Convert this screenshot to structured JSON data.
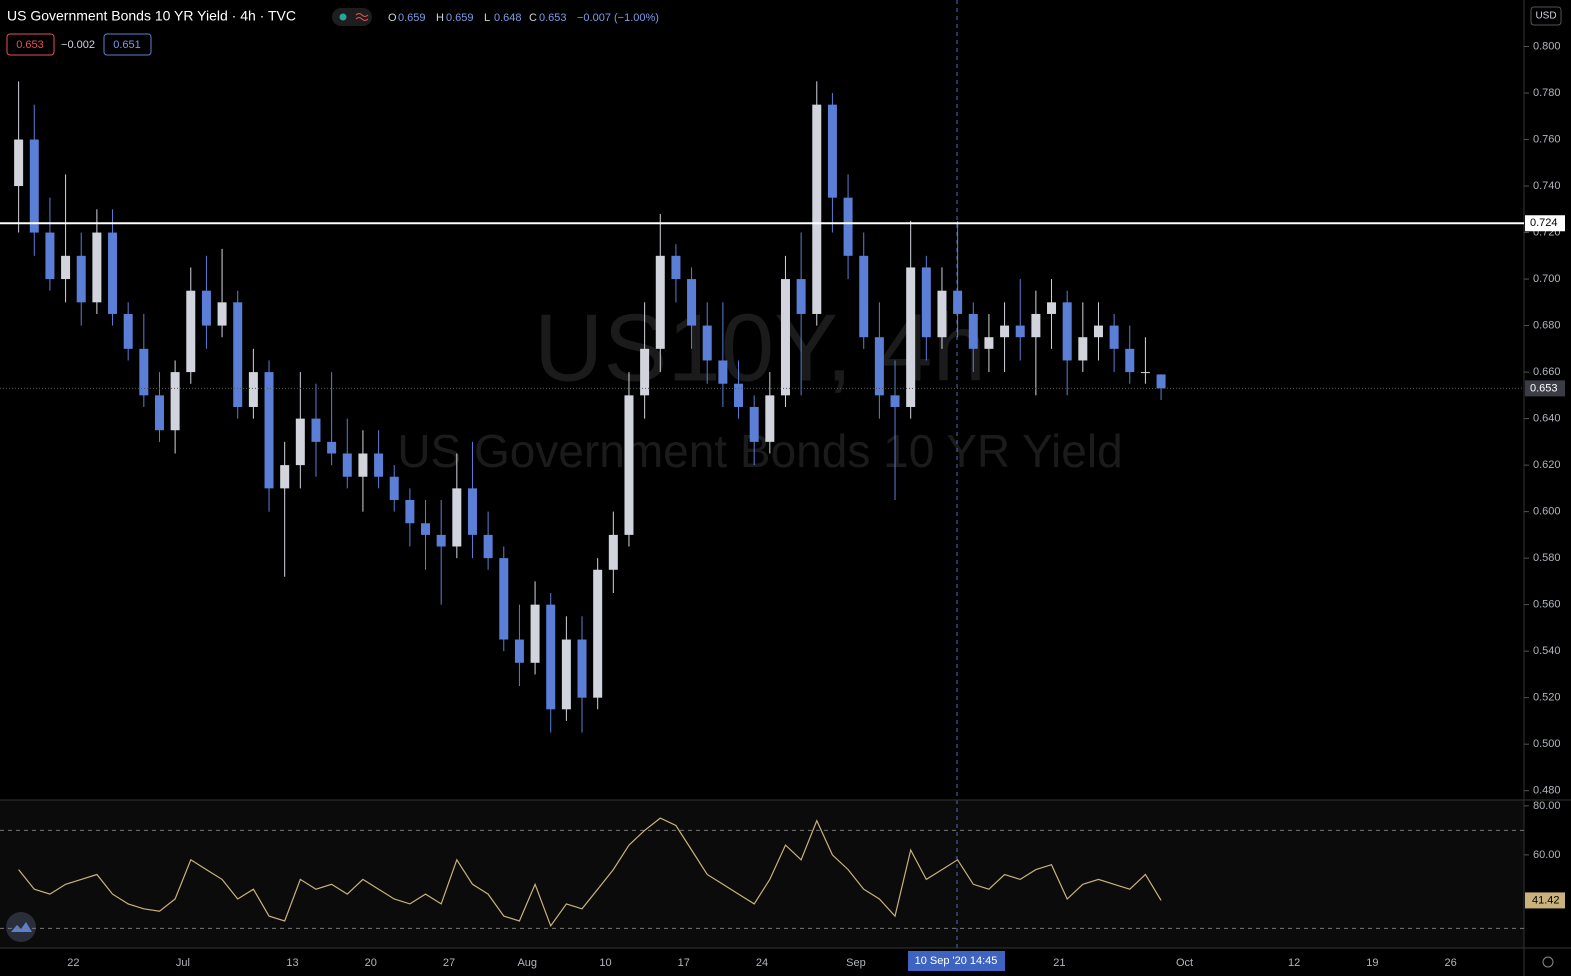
{
  "header": {
    "title": "US Government Bonds 10 YR Yield · 4h · TVC",
    "ohlc": [
      {
        "label": "O",
        "value": 0.659
      },
      {
        "label": "H",
        "value": 0.659
      },
      {
        "label": "L",
        "value": 0.648
      },
      {
        "label": "C",
        "value": 0.653
      }
    ],
    "change": "−0.007 (−1.00%)",
    "bid": 0.653,
    "spread": "−0.002",
    "ask": 0.651
  },
  "watermark": {
    "symbol": "US10Y, 4h",
    "name": "US Government Bonds 10 YR Yield"
  },
  "currency": "USD",
  "crosshair_label": "10 Sep '20  14:45",
  "chart_data": [
    {
      "type": "candlestick",
      "up_color": "#d1d4dc",
      "down_color": "#5b7fd6",
      "categories": [
        null,
        null,
        null,
        null,
        "22",
        null,
        null,
        null,
        null,
        null,
        null,
        "Jul",
        null,
        null,
        null,
        null,
        null,
        null,
        "13",
        null,
        null,
        null,
        null,
        "20",
        null,
        null,
        null,
        null,
        "27",
        null,
        null,
        null,
        null,
        "Aug",
        null,
        null,
        null,
        null,
        "10",
        null,
        null,
        null,
        null,
        "17",
        null,
        null,
        null,
        null,
        "24",
        null,
        null,
        null,
        null,
        null,
        "Sep",
        null,
        null,
        null,
        null,
        null,
        null,
        null,
        null,
        null,
        null,
        null,
        null,
        "21",
        null,
        null,
        null,
        null,
        null,
        null,
        null,
        "Oct",
        null,
        null,
        null,
        null,
        null,
        null,
        "12",
        null,
        null,
        null,
        null,
        "19",
        null,
        null,
        null,
        null,
        "26",
        null,
        null,
        null,
        null
      ],
      "open": [
        0.74,
        0.76,
        0.72,
        0.7,
        0.71,
        0.69,
        0.72,
        0.685,
        0.67,
        0.65,
        0.635,
        0.66,
        0.695,
        0.68,
        0.69,
        0.645,
        0.66,
        0.61,
        0.62,
        0.64,
        0.63,
        0.625,
        0.615,
        0.625,
        0.615,
        0.605,
        0.595,
        0.59,
        0.585,
        0.61,
        0.59,
        0.58,
        0.545,
        0.535,
        0.56,
        0.515,
        0.545,
        0.52,
        0.575,
        0.59,
        0.65,
        0.67,
        0.71,
        0.7,
        0.68,
        0.665,
        0.655,
        0.645,
        0.63,
        0.65,
        0.7,
        0.685,
        0.775,
        0.735,
        0.71,
        0.675,
        0.65,
        0.645,
        0.705,
        0.675,
        0.695,
        0.685,
        0.67,
        0.675,
        0.68,
        0.675,
        0.685,
        0.69,
        0.665,
        0.675,
        0.68,
        0.67,
        0.66,
        0.659,
        null,
        null,
        null,
        null,
        null,
        null,
        null,
        null,
        null,
        null,
        null,
        null,
        null,
        null,
        null,
        null,
        null,
        null,
        null,
        null,
        null,
        null,
        null
      ],
      "high": [
        0.785,
        0.775,
        0.735,
        0.745,
        0.72,
        0.73,
        0.73,
        0.69,
        0.685,
        0.66,
        0.665,
        0.705,
        0.71,
        0.713,
        0.695,
        0.67,
        0.665,
        0.63,
        0.66,
        0.655,
        0.66,
        0.64,
        0.635,
        0.635,
        0.62,
        0.61,
        0.605,
        0.605,
        0.625,
        0.63,
        0.6,
        0.585,
        0.56,
        0.57,
        0.565,
        0.555,
        0.555,
        0.58,
        0.6,
        0.66,
        0.69,
        0.728,
        0.715,
        0.705,
        0.69,
        0.69,
        0.665,
        0.65,
        0.66,
        0.71,
        0.72,
        0.785,
        0.78,
        0.745,
        0.72,
        0.69,
        0.665,
        0.725,
        0.71,
        0.705,
        0.725,
        0.69,
        0.685,
        0.69,
        0.7,
        0.695,
        0.7,
        0.695,
        0.69,
        0.69,
        0.685,
        0.68,
        0.675,
        0.659,
        null,
        null,
        null,
        null,
        null,
        null,
        null,
        null,
        null,
        null,
        null,
        null,
        null,
        null,
        null,
        null,
        null,
        null,
        null,
        null,
        null,
        null,
        null
      ],
      "low": [
        0.72,
        0.71,
        0.695,
        0.69,
        0.68,
        0.685,
        0.68,
        0.665,
        0.645,
        0.63,
        0.625,
        0.655,
        0.67,
        0.675,
        0.64,
        0.64,
        0.6,
        0.572,
        0.61,
        0.615,
        0.62,
        0.61,
        0.6,
        0.61,
        0.6,
        0.585,
        0.575,
        0.56,
        0.58,
        0.58,
        0.575,
        0.54,
        0.525,
        0.53,
        0.505,
        0.51,
        0.505,
        0.515,
        0.565,
        0.585,
        0.64,
        0.66,
        0.69,
        0.67,
        0.655,
        0.645,
        0.64,
        0.62,
        0.625,
        0.645,
        0.65,
        0.68,
        0.72,
        0.7,
        0.67,
        0.64,
        0.605,
        0.64,
        0.665,
        0.67,
        0.675,
        0.66,
        0.66,
        0.66,
        0.665,
        0.65,
        0.67,
        0.65,
        0.66,
        0.665,
        0.66,
        0.655,
        0.655,
        0.648,
        null,
        null,
        null,
        null,
        null,
        null,
        null,
        null,
        null,
        null,
        null,
        null,
        null,
        null,
        null,
        null,
        null,
        null,
        null,
        null,
        null,
        null,
        null
      ],
      "close": [
        0.76,
        0.72,
        0.7,
        0.71,
        0.69,
        0.72,
        0.685,
        0.67,
        0.65,
        0.635,
        0.66,
        0.695,
        0.68,
        0.69,
        0.645,
        0.66,
        0.61,
        0.62,
        0.64,
        0.63,
        0.625,
        0.615,
        0.625,
        0.615,
        0.605,
        0.595,
        0.59,
        0.585,
        0.61,
        0.59,
        0.58,
        0.545,
        0.535,
        0.56,
        0.515,
        0.545,
        0.52,
        0.575,
        0.59,
        0.65,
        0.67,
        0.71,
        0.7,
        0.68,
        0.665,
        0.655,
        0.645,
        0.63,
        0.65,
        0.7,
        0.685,
        0.775,
        0.735,
        0.71,
        0.675,
        0.65,
        0.645,
        0.705,
        0.675,
        0.695,
        0.685,
        0.67,
        0.675,
        0.68,
        0.675,
        0.685,
        0.69,
        0.665,
        0.675,
        0.68,
        0.67,
        0.66,
        0.66,
        0.653,
        null,
        null,
        null,
        null,
        null,
        null,
        null,
        null,
        null,
        null,
        null,
        null,
        null,
        null,
        null,
        null,
        null,
        null,
        null,
        null,
        null,
        null,
        null
      ],
      "ylim": [
        0.476,
        0.82
      ],
      "yticks": [
        {
          "value": 0.48,
          "label": "0.480"
        },
        {
          "value": 0.5,
          "label": "0.500"
        },
        {
          "value": 0.52,
          "label": "0.520"
        },
        {
          "value": 0.54,
          "label": "0.540"
        },
        {
          "value": 0.56,
          "label": "0.560"
        },
        {
          "value": 0.58,
          "label": "0.580"
        },
        {
          "value": 0.6,
          "label": "0.600"
        },
        {
          "value": 0.62,
          "label": "0.620"
        },
        {
          "value": 0.64,
          "label": "0.640"
        },
        {
          "value": 0.66,
          "label": "0.660"
        },
        {
          "value": 0.68,
          "label": "0.680"
        },
        {
          "value": 0.7,
          "label": "0.700"
        },
        {
          "value": 0.72,
          "label": "0.720"
        },
        {
          "value": 0.74,
          "label": "0.740"
        },
        {
          "value": 0.76,
          "label": "0.760"
        },
        {
          "value": 0.78,
          "label": "0.780"
        },
        {
          "value": 0.8,
          "label": "0.800"
        }
      ],
      "hline": {
        "value": 0.724,
        "label": "0.724",
        "color": "#ffffff"
      },
      "last_price": 0.653,
      "grid": false
    },
    {
      "type": "line",
      "color": "#c9b27c",
      "values": [
        54,
        46,
        44,
        48,
        50,
        52,
        44,
        40,
        38,
        37,
        42,
        58,
        54,
        50,
        42,
        46,
        35,
        33,
        50,
        46,
        48,
        44,
        50,
        46,
        42,
        40,
        44,
        40,
        58,
        48,
        44,
        35,
        33,
        48,
        31,
        40,
        38,
        46,
        54,
        64,
        70,
        75,
        72,
        62,
        52,
        48,
        44,
        40,
        50,
        64,
        58,
        74,
        60,
        54,
        46,
        42,
        35,
        62,
        50,
        54,
        58,
        48,
        46,
        52,
        50,
        54,
        56,
        42,
        48,
        50,
        48,
        46,
        52,
        41.42,
        null,
        null,
        null,
        null,
        null,
        null,
        null,
        null,
        null,
        null,
        null,
        null,
        null,
        null,
        null,
        null,
        null,
        null,
        null,
        null,
        null,
        null,
        null
      ],
      "ylim": [
        22,
        82.4
      ],
      "yticks": [
        {
          "value": 80,
          "label": "80.00"
        },
        {
          "value": 60,
          "label": "60.00"
        }
      ],
      "levels": [
        70,
        30
      ],
      "grid": false
    }
  ]
}
